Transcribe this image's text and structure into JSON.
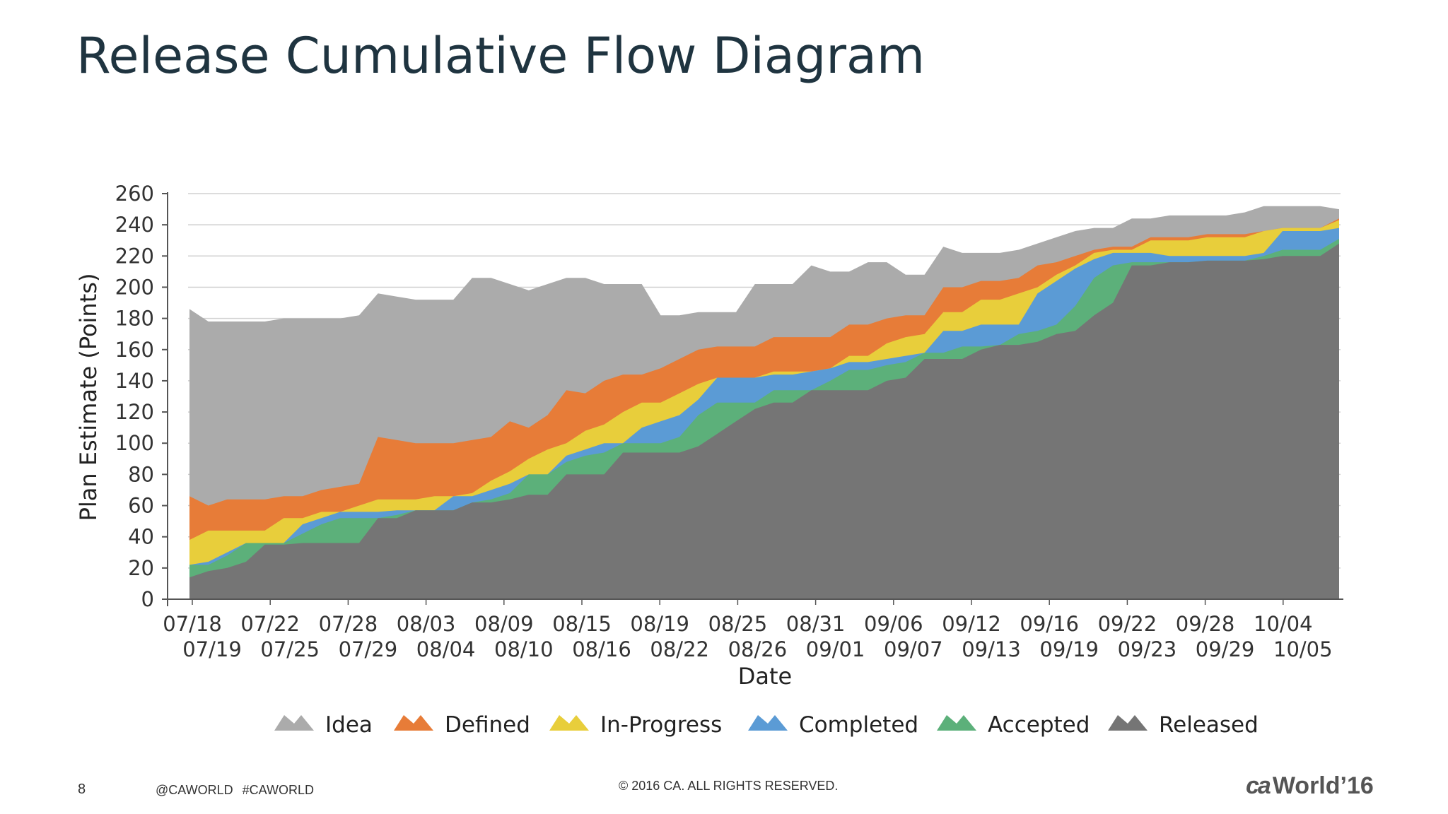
{
  "slide": {
    "title": "Release Cumulative Flow Diagram",
    "page_number": "8",
    "hashtags": "@CAWORLD #CAWORLD",
    "copyright": "© 2016 CA. ALL RIGHTS RESERVED.",
    "logo": {
      "ca": "ca",
      "world": "World",
      "year": "’16"
    }
  },
  "chart_data": {
    "type": "area",
    "stacked": true,
    "xlabel": "Date",
    "ylabel": "Plan Estimate (Points)",
    "ylim": [
      0,
      260
    ],
    "yticks": [
      0,
      20,
      40,
      60,
      80,
      100,
      120,
      140,
      160,
      180,
      200,
      220,
      240,
      260
    ],
    "grid": true,
    "legend_position": "bottom",
    "x_labels_row1": [
      "07/18",
      "07/22",
      "07/28",
      "08/03",
      "08/09",
      "08/15",
      "08/19",
      "08/25",
      "08/31",
      "09/06",
      "09/12",
      "09/16",
      "09/22",
      "09/28",
      "10/04"
    ],
    "x_labels_row2": [
      "07/19",
      "07/25",
      "07/29",
      "08/04",
      "08/10",
      "08/16",
      "08/22",
      "08/26",
      "09/01",
      "09/07",
      "09/13",
      "09/19",
      "09/23",
      "09/29",
      "10/05"
    ],
    "series": [
      {
        "name": "Released",
        "color": "#757575",
        "values": [
          14,
          18,
          20,
          24,
          35,
          35,
          36,
          36,
          36,
          36,
          52,
          52,
          57,
          57,
          57,
          62,
          62,
          64,
          67,
          67,
          80,
          80,
          80,
          94,
          94,
          94,
          94,
          98,
          106,
          114,
          122,
          126,
          126,
          134,
          134,
          134,
          134,
          140,
          142,
          154,
          154,
          154,
          160,
          163,
          163,
          165,
          170,
          172,
          182,
          190,
          214,
          214,
          216,
          216,
          217,
          217,
          217,
          218,
          220,
          220,
          220,
          228
        ]
      },
      {
        "name": "Accepted",
        "color": "#5cb07a",
        "values": [
          22,
          22,
          28,
          36,
          36,
          36,
          42,
          48,
          52,
          52,
          52,
          54,
          57,
          57,
          57,
          62,
          64,
          68,
          80,
          80,
          88,
          92,
          94,
          100,
          100,
          100,
          104,
          118,
          126,
          126,
          126,
          134,
          134,
          134,
          140,
          147,
          147,
          150,
          152,
          158,
          158,
          162,
          162,
          163,
          170,
          172,
          176,
          188,
          206,
          214,
          216,
          216,
          216,
          216,
          217,
          217,
          217,
          220,
          224,
          224,
          224,
          231
        ]
      },
      {
        "name": "Completed",
        "color": "#5b9bd5",
        "values": [
          22,
          24,
          30,
          36,
          36,
          36,
          48,
          52,
          56,
          56,
          56,
          57,
          57,
          57,
          66,
          66,
          70,
          74,
          80,
          80,
          92,
          96,
          100,
          100,
          110,
          114,
          118,
          128,
          142,
          142,
          142,
          144,
          144,
          146,
          148,
          152,
          152,
          154,
          156,
          158,
          172,
          172,
          176,
          176,
          176,
          196,
          204,
          212,
          218,
          222,
          222,
          222,
          220,
          220,
          220,
          220,
          220,
          222,
          236,
          236,
          236,
          238
        ]
      },
      {
        "name": "In-Progress",
        "color": "#e8ce3b",
        "values": [
          38,
          44,
          44,
          44,
          44,
          52,
          52,
          56,
          56,
          60,
          64,
          64,
          64,
          66,
          66,
          68,
          76,
          82,
          90,
          96,
          100,
          108,
          112,
          120,
          126,
          126,
          132,
          138,
          142,
          142,
          142,
          146,
          146,
          146,
          148,
          156,
          156,
          164,
          168,
          170,
          184,
          184,
          192,
          192,
          196,
          200,
          208,
          214,
          222,
          224,
          224,
          230,
          230,
          230,
          232,
          232,
          232,
          236,
          238,
          238,
          238,
          243
        ]
      },
      {
        "name": "Defined",
        "color": "#e77c38",
        "values": [
          66,
          60,
          64,
          64,
          64,
          66,
          66,
          70,
          72,
          74,
          104,
          102,
          100,
          100,
          100,
          102,
          104,
          114,
          110,
          118,
          134,
          132,
          140,
          144,
          144,
          148,
          154,
          160,
          162,
          162,
          162,
          168,
          168,
          168,
          168,
          176,
          176,
          180,
          182,
          182,
          200,
          200,
          204,
          204,
          206,
          214,
          216,
          220,
          224,
          226,
          226,
          232,
          232,
          232,
          234,
          234,
          234,
          236,
          238,
          238,
          238,
          244
        ]
      },
      {
        "name": "Idea",
        "color": "#ababab",
        "values": [
          186,
          178,
          178,
          178,
          178,
          180,
          180,
          180,
          180,
          182,
          196,
          194,
          192,
          192,
          192,
          206,
          206,
          202,
          198,
          202,
          206,
          206,
          202,
          202,
          202,
          182,
          182,
          184,
          184,
          184,
          202,
          202,
          202,
          214,
          210,
          210,
          216,
          216,
          208,
          208,
          226,
          222,
          222,
          222,
          224,
          228,
          232,
          236,
          238,
          238,
          244,
          244,
          246,
          246,
          246,
          246,
          248,
          252,
          252,
          252,
          252,
          250
        ]
      }
    ]
  }
}
